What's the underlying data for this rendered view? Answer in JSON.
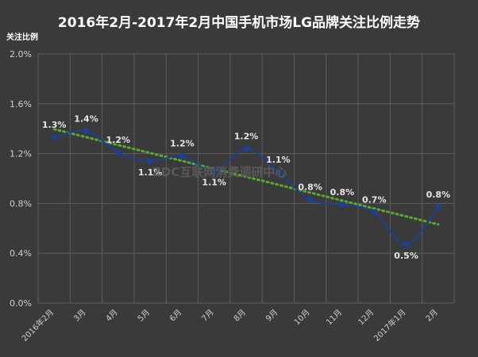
{
  "chart_data": {
    "type": "line",
    "title": "2016年2月-2017年2月中国手机市场LG品牌关注比例走势",
    "ylabel": "关注比例",
    "xlabel": "",
    "watermark": "ZDC互联网消费调研中心",
    "categories": [
      "2016年2月",
      "3月",
      "4月",
      "5月",
      "6月",
      "7月",
      "8月",
      "9月",
      "10月",
      "11月",
      "12月",
      "2017年1月",
      "2月"
    ],
    "yticks": [
      "0.0%",
      "0.4%",
      "0.8%",
      "1.2%",
      "1.6%",
      "2.0%"
    ],
    "ylim": [
      0,
      2.0
    ],
    "grid": true,
    "trendline": true,
    "series": [
      {
        "values": [
          1.33,
          1.38,
          1.21,
          1.14,
          1.18,
          1.06,
          1.24,
          1.05,
          0.83,
          0.79,
          0.73,
          0.47,
          0.77
        ],
        "labels": [
          "1.3%",
          "1.4%",
          "1.2%",
          "1.1%",
          "1.2%",
          "1.1%",
          "1.2%",
          "1.1%",
          "0.8%",
          "0.8%",
          "0.7%",
          "0.5%",
          "0.8%"
        ],
        "color": "#1f3f8f",
        "trend_color": "#5aa832"
      }
    ]
  }
}
